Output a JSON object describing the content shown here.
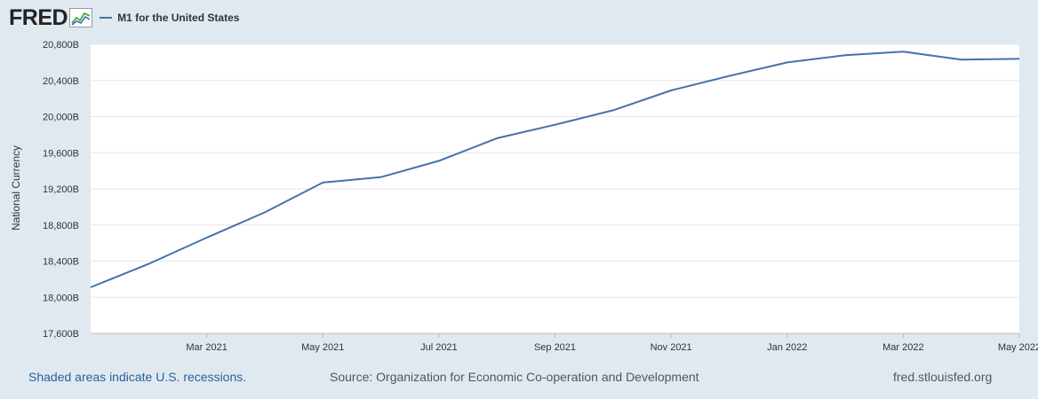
{
  "logo": {
    "text": "FRED"
  },
  "legend": {
    "label": "M1 for the United States",
    "color": "#4572a7"
  },
  "footer": {
    "recession_note": "Shaded areas indicate U.S. recessions.",
    "source": "Source: Organization for Economic Co-operation and Development",
    "url": "fred.stlouisfed.org"
  },
  "chart_data": {
    "type": "line",
    "title": "M1 for the United States",
    "ylabel": "National Currency",
    "xlabel": "",
    "ylim": [
      17600,
      20800
    ],
    "y_ticks": [
      "17,600B",
      "18,000B",
      "18,400B",
      "18,800B",
      "19,200B",
      "19,600B",
      "20,000B",
      "20,400B",
      "20,800B"
    ],
    "y_tick_values": [
      17600,
      18000,
      18400,
      18800,
      19200,
      19600,
      20000,
      20400,
      20800
    ],
    "x_ticks": [
      "Mar 2021",
      "May 2021",
      "Jul 2021",
      "Sep 2021",
      "Nov 2021",
      "Jan 2022",
      "Mar 2022",
      "May 2022"
    ],
    "x_tick_months": [
      2,
      4,
      6,
      8,
      10,
      12,
      14,
      16
    ],
    "xlim_months": [
      0,
      16
    ],
    "grid": true,
    "series": [
      {
        "name": "M1 for the United States",
        "color": "#4572a7",
        "x_months": [
          0,
          1,
          2,
          3,
          4,
          5,
          6,
          7,
          8,
          9,
          10,
          11,
          12,
          13,
          14,
          15,
          16
        ],
        "x": [
          "Jan 2021",
          "Feb 2021",
          "Mar 2021",
          "Apr 2021",
          "May 2021",
          "Jun 2021",
          "Jul 2021",
          "Aug 2021",
          "Sep 2021",
          "Oct 2021",
          "Nov 2021",
          "Dec 2021",
          "Jan 2022",
          "Feb 2022",
          "Mar 2022",
          "Apr 2022",
          "May 2022"
        ],
        "values": [
          18110,
          18370,
          18660,
          18940,
          19270,
          19330,
          19510,
          19760,
          19910,
          20070,
          20290,
          20450,
          20600,
          20680,
          20720,
          20630,
          20640
        ]
      }
    ]
  }
}
